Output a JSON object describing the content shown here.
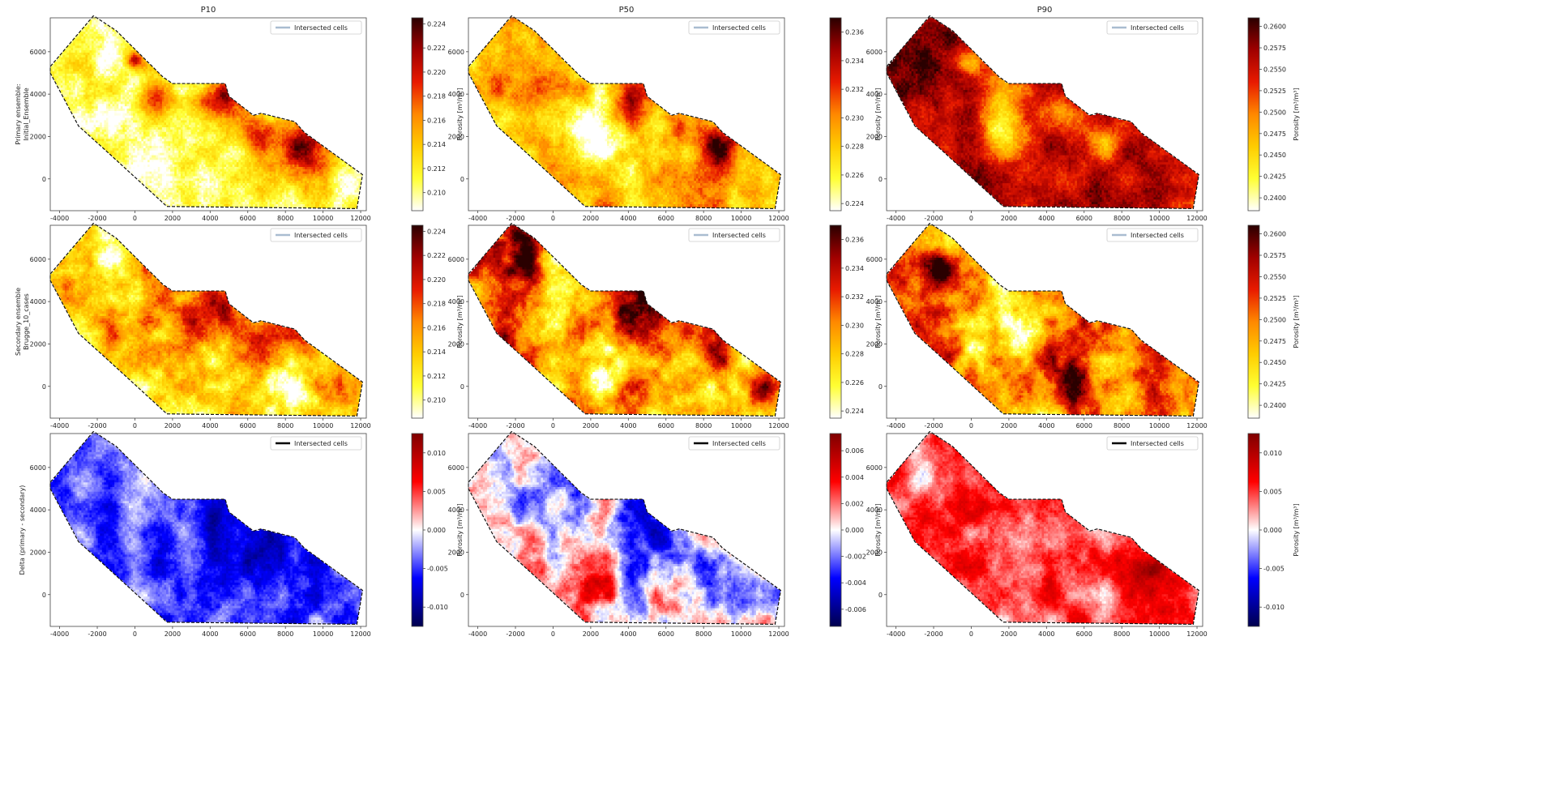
{
  "figure": {
    "column_titles": [
      "P10",
      "P50",
      "P90"
    ],
    "row_labels": [
      [
        "Primary ensemble:",
        "Initial_Ensemble"
      ],
      [
        "Secondary ensemble",
        "Brugge_10_cases"
      ],
      [
        "Delta (primary - secondary)"
      ]
    ]
  },
  "colors": {
    "hot": [
      "#ffffff",
      "#ffff33",
      "#ffcc00",
      "#ff8800",
      "#e81a00",
      "#a00000",
      "#2a0000"
    ],
    "seismic": [
      "#00004c",
      "#0000ff",
      "#ffffff",
      "#ff0000",
      "#7f0000"
    ],
    "legend_line_light": "#a9bcd0",
    "legend_line_dark": "#000000"
  },
  "chart_data": [
    {
      "type": "heatmap",
      "row": 0,
      "col": 0,
      "title": "P10",
      "ylabel": [
        "Primary ensemble:",
        "Initial_Ensemble"
      ],
      "legend": "Intersected cells",
      "legend_position": "top-right",
      "colormap": "hot",
      "colorbar_label": "Porosity [m³/m³]",
      "clim": [
        0.2085,
        0.2245
      ],
      "colorbar_ticks": [
        "0.210",
        "0.212",
        "0.214",
        "0.216",
        "0.218",
        "0.220",
        "0.222",
        "0.224"
      ],
      "xlim": [
        -4500,
        12300
      ],
      "ylim": [
        -1500,
        7600
      ],
      "xticks": [
        "-4000",
        "-2000",
        "0",
        "2000",
        "4000",
        "6000",
        "8000",
        "10000",
        "12000"
      ],
      "yticks": [
        "0",
        "2000",
        "4000",
        "6000"
      ],
      "mean": 0.15,
      "scale": 0.3,
      "blobs": [
        [
          9000,
          1400,
          1300,
          0.8
        ],
        [
          5000,
          3900,
          900,
          0.5
        ],
        [
          4000,
          3700,
          900,
          0.4
        ],
        [
          6500,
          2100,
          1000,
          0.5
        ],
        [
          1000,
          3700,
          1000,
          0.4
        ],
        [
          0,
          5600,
          400,
          0.6
        ]
      ]
    },
    {
      "type": "heatmap",
      "row": 0,
      "col": 1,
      "title": "P50",
      "legend": "Intersected cells",
      "legend_position": "top-right",
      "colormap": "hot",
      "colorbar_label": "Porosity [m³/m³]",
      "clim": [
        0.2235,
        0.237
      ],
      "colorbar_ticks": [
        "0.224",
        "0.226",
        "0.228",
        "0.230",
        "0.232",
        "0.234",
        "0.236"
      ],
      "xlim": [
        -4500,
        12300
      ],
      "ylim": [
        -1500,
        7600
      ],
      "xticks": [
        "-4000",
        "-2000",
        "0",
        "2000",
        "4000",
        "6000",
        "8000",
        "10000",
        "12000"
      ],
      "yticks": [
        "0",
        "2000",
        "4000",
        "6000"
      ],
      "mean": 0.35,
      "scale": 0.35,
      "blobs": [
        [
          8900,
          1500,
          900,
          0.6
        ],
        [
          4200,
          4000,
          1000,
          0.4
        ],
        [
          2000,
          2300,
          1400,
          -0.6
        ],
        [
          6800,
          2100,
          900,
          0.3
        ],
        [
          -1000,
          5200,
          1500,
          0.1
        ]
      ]
    },
    {
      "type": "heatmap",
      "row": 0,
      "col": 2,
      "title": "P90",
      "legend": "Intersected cells",
      "legend_position": "top-right",
      "colormap": "hot",
      "colorbar_label": "Porosity [m³/m³]",
      "clim": [
        0.2385,
        0.261
      ],
      "colorbar_ticks": [
        "0.2400",
        "0.2425",
        "0.2450",
        "0.2475",
        "0.2500",
        "0.2525",
        "0.2550",
        "0.2575",
        "0.2600"
      ],
      "xlim": [
        -4500,
        12300
      ],
      "ylim": [
        -1500,
        7600
      ],
      "xticks": [
        "-4000",
        "-2000",
        "0",
        "2000",
        "4000",
        "6000",
        "8000",
        "10000",
        "12000"
      ],
      "yticks": [
        "0",
        "2000",
        "4000",
        "6000"
      ],
      "mean": 0.78,
      "scale": 0.25,
      "blobs": [
        [
          1800,
          2300,
          1300,
          -0.55
        ],
        [
          1500,
          4300,
          900,
          -0.4
        ],
        [
          4500,
          3300,
          900,
          -0.35
        ],
        [
          7000,
          1900,
          1000,
          -0.35
        ],
        [
          0,
          5500,
          600,
          -0.3
        ],
        [
          -2000,
          5500,
          1500,
          0.2
        ]
      ]
    },
    {
      "type": "heatmap",
      "row": 1,
      "col": 0,
      "title": "",
      "ylabel": [
        "Secondary ensemble",
        "Brugge_10_cases"
      ],
      "legend": "Intersected cells",
      "legend_position": "top-right",
      "colormap": "hot",
      "colorbar_label": "Porosity [m³/m³]",
      "clim": [
        0.2085,
        0.2245
      ],
      "colorbar_ticks": [
        "0.210",
        "0.212",
        "0.214",
        "0.216",
        "0.218",
        "0.220",
        "0.222",
        "0.224"
      ],
      "xlim": [
        -4500,
        12300
      ],
      "ylim": [
        -1500,
        7600
      ],
      "xticks": [
        "-4000",
        "-2000",
        "0",
        "2000",
        "4000",
        "6000",
        "8000",
        "10000",
        "12000"
      ],
      "yticks": [
        "0",
        "2000",
        "4000",
        "6000"
      ],
      "mean": 0.3,
      "scale": 0.5,
      "blobs": [
        [
          4200,
          3600,
          1600,
          0.5
        ],
        [
          7000,
          2400,
          1500,
          0.35
        ],
        [
          1200,
          3500,
          1300,
          0.25
        ],
        [
          9000,
          1400,
          900,
          0.3
        ],
        [
          8000,
          0,
          1800,
          -0.3
        ]
      ]
    },
    {
      "type": "heatmap",
      "row": 1,
      "col": 1,
      "title": "",
      "legend": "Intersected cells",
      "legend_position": "top-right",
      "colormap": "hot",
      "colorbar_label": "Porosity [m³/m³]",
      "clim": [
        0.2235,
        0.237
      ],
      "colorbar_ticks": [
        "0.224",
        "0.226",
        "0.228",
        "0.230",
        "0.232",
        "0.234",
        "0.236"
      ],
      "xlim": [
        -4500,
        12300
      ],
      "ylim": [
        -1500,
        7600
      ],
      "xticks": [
        "-4000",
        "-2000",
        "0",
        "2000",
        "4000",
        "6000",
        "8000",
        "10000",
        "12000"
      ],
      "yticks": [
        "0",
        "2000",
        "4000",
        "6000"
      ],
      "mean": 0.5,
      "scale": 0.6,
      "blobs": [
        [
          4500,
          3600,
          1400,
          0.35
        ],
        [
          -1500,
          6500,
          1200,
          0.3
        ],
        [
          2500,
          1000,
          1500,
          -0.35
        ],
        [
          9000,
          1400,
          800,
          0.4
        ]
      ]
    },
    {
      "type": "heatmap",
      "row": 1,
      "col": 2,
      "title": "",
      "legend": "Intersected cells",
      "legend_position": "top-right",
      "colormap": "hot",
      "colorbar_label": "Porosity [m³/m³]",
      "clim": [
        0.2385,
        0.261
      ],
      "colorbar_ticks": [
        "0.2400",
        "0.2425",
        "0.2450",
        "0.2475",
        "0.2500",
        "0.2525",
        "0.2550",
        "0.2575",
        "0.2600"
      ],
      "xlim": [
        -4500,
        12300
      ],
      "ylim": [
        -1500,
        7600
      ],
      "xticks": [
        "-4000",
        "-2000",
        "0",
        "2000",
        "4000",
        "6000",
        "8000",
        "10000",
        "12000"
      ],
      "yticks": [
        "0",
        "2000",
        "4000",
        "6000"
      ],
      "mean": 0.45,
      "scale": 0.55,
      "blobs": [
        [
          -2200,
          5200,
          1500,
          0.45
        ],
        [
          2000,
          2600,
          1500,
          -0.35
        ],
        [
          5000,
          200,
          1500,
          0.3
        ],
        [
          9500,
          1600,
          1000,
          0.3
        ]
      ]
    },
    {
      "type": "heatmap",
      "row": 2,
      "col": 0,
      "title": "",
      "ylabel": [
        "Delta (primary - secondary)"
      ],
      "legend": "Intersected cells",
      "legend_position": "top-right",
      "colormap": "seismic",
      "colorbar_label": "Porosity [m³/m³]",
      "clim": [
        -0.0125,
        0.0125
      ],
      "colorbar_ticks": [
        "0.010",
        "0.005",
        "0.000",
        "-0.005",
        "-0.010"
      ],
      "colorbar_tick_values": [
        0.01,
        0.005,
        0.0,
        -0.005,
        -0.01
      ],
      "xlim": [
        -4500,
        12300
      ],
      "ylim": [
        -1500,
        7600
      ],
      "xticks": [
        "-4000",
        "-2000",
        "0",
        "2000",
        "4000",
        "6000",
        "8000",
        "10000",
        "12000"
      ],
      "yticks": [
        "0",
        "2000",
        "4000",
        "6000"
      ],
      "mean": -0.35,
      "scale": 0.45,
      "blobs": [
        [
          4300,
          3300,
          1600,
          -0.3
        ],
        [
          7000,
          2200,
          1400,
          -0.2
        ],
        [
          -2500,
          5200,
          1200,
          0.2
        ]
      ]
    },
    {
      "type": "heatmap",
      "row": 2,
      "col": 1,
      "title": "",
      "legend": "Intersected cells",
      "legend_position": "top-right",
      "colormap": "seismic",
      "colorbar_label": "Porosity [m³/m³]",
      "clim": [
        -0.0073,
        0.0073
      ],
      "colorbar_ticks": [
        "0.006",
        "0.004",
        "0.002",
        "0.000",
        "-0.002",
        "-0.004",
        "-0.006"
      ],
      "colorbar_tick_values": [
        0.006,
        0.004,
        0.002,
        0.0,
        -0.002,
        -0.004,
        -0.006
      ],
      "xlim": [
        -4500,
        12300
      ],
      "ylim": [
        -1500,
        7600
      ],
      "xticks": [
        "-4000",
        "-2000",
        "0",
        "2000",
        "4000",
        "6000",
        "8000",
        "10000",
        "12000"
      ],
      "yticks": [
        "0",
        "2000",
        "4000",
        "6000"
      ],
      "mean": -0.05,
      "scale": 0.7,
      "blobs": [
        [
          4500,
          3300,
          1400,
          -0.35
        ],
        [
          2500,
          700,
          1200,
          0.3
        ],
        [
          9000,
          500,
          1000,
          0.25
        ]
      ]
    },
    {
      "type": "heatmap",
      "row": 2,
      "col": 2,
      "title": "",
      "legend": "Intersected cells",
      "legend_position": "top-right",
      "colormap": "seismic",
      "colorbar_label": "Porosity [m³/m³]",
      "clim": [
        -0.0125,
        0.0125
      ],
      "colorbar_ticks": [
        "0.010",
        "0.005",
        "0.000",
        "-0.005",
        "-0.010"
      ],
      "colorbar_tick_values": [
        0.01,
        0.005,
        0.0,
        -0.005,
        -0.01
      ],
      "xlim": [
        -4500,
        12300
      ],
      "ylim": [
        -1500,
        7600
      ],
      "xticks": [
        "-4000",
        "-2000",
        "0",
        "2000",
        "4000",
        "6000",
        "8000",
        "10000",
        "12000"
      ],
      "yticks": [
        "0",
        "2000",
        "4000",
        "6000"
      ],
      "mean": 0.35,
      "scale": 0.45,
      "blobs": [
        [
          9500,
          500,
          1200,
          0.35
        ],
        [
          -2500,
          5500,
          1000,
          -0.2
        ],
        [
          1000,
          3000,
          1500,
          0.15
        ]
      ]
    }
  ],
  "field_outline": [
    [
      -2200,
      7700
    ],
    [
      -4500,
      5300
    ],
    [
      -4500,
      5000
    ],
    [
      -3000,
      2500
    ],
    [
      -1500,
      1300
    ],
    [
      1700,
      -1300
    ],
    [
      11800,
      -1400
    ],
    [
      12100,
      200
    ],
    [
      9000,
      2200
    ],
    [
      8500,
      2700
    ],
    [
      6700,
      3100
    ],
    [
      6300,
      3000
    ],
    [
      5000,
      3900
    ],
    [
      4800,
      4500
    ],
    [
      2000,
      4500
    ],
    [
      1500,
      4800
    ],
    [
      -1000,
      7000
    ],
    [
      -2200,
      7700
    ]
  ]
}
